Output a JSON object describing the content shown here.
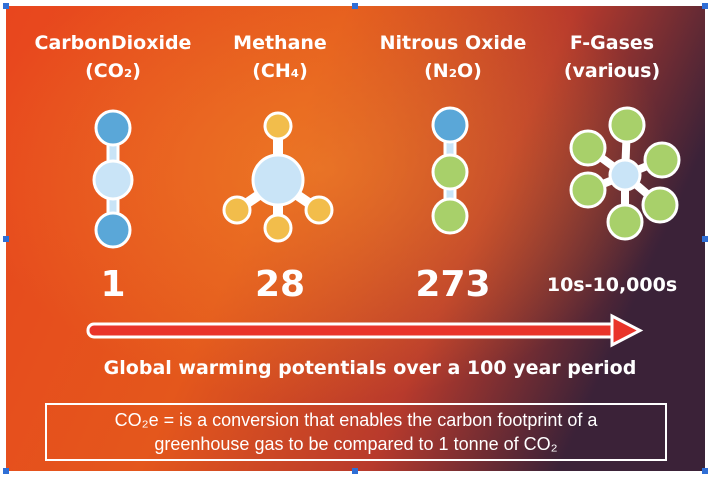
{
  "gases": [
    {
      "name": "CarbonDioxide",
      "formula": "(CO₂)",
      "gwp": 1
    },
    {
      "name": "Methane",
      "formula": "(CH₄)",
      "gwp": 28
    },
    {
      "name": "Nitrous Oxide",
      "formula": "(N₂O)",
      "gwp": 273
    },
    {
      "name": "F-Gases",
      "formula": "(various)",
      "gwp": "10s-10,000s"
    }
  ],
  "caption": "Global warming potentials over a 100 year period",
  "note": "CO₂e = is a conversion that enables the carbon footprint of a greenhouse gas to be compared to 1 tonne of CO₂"
}
